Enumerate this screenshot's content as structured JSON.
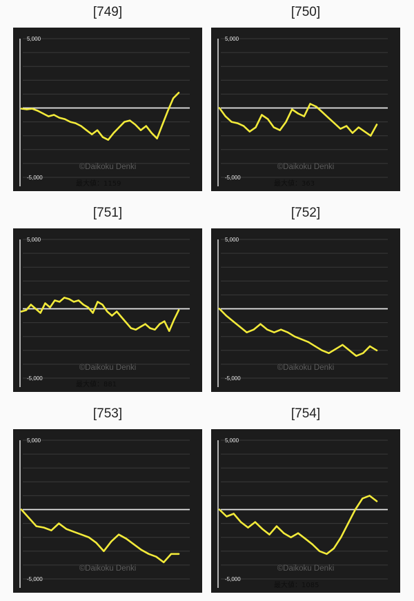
{
  "chart_data": [
    {
      "type": "line",
      "title": "[749]",
      "ylim": [
        -5000,
        5000
      ],
      "yticks": [
        "5,000",
        "-5,000"
      ],
      "watermark": "©Daikoku Denki",
      "max_label": "最大値：1159",
      "line_color": "#f2ea3a",
      "y": [
        -50,
        -100,
        -50,
        -200,
        -400,
        -600,
        -500,
        -700,
        -800,
        -1000,
        -1100,
        -1300,
        -1600,
        -1900,
        -1600,
        -2100,
        -2300,
        -1800,
        -1400,
        -1000,
        -900,
        -1200,
        -1600,
        -1300,
        -1800,
        -2200,
        -1200,
        -200,
        700,
        1100
      ]
    },
    {
      "type": "line",
      "title": "[750]",
      "ylim": [
        -5000,
        5000
      ],
      "yticks": [
        "5,000",
        "-5,000"
      ],
      "watermark": "©Daikoku Denki",
      "max_label": "最大値：363",
      "line_color": "#f2ea3a",
      "y": [
        0,
        -600,
        -1000,
        -1100,
        -1300,
        -1700,
        -1400,
        -500,
        -800,
        -1400,
        -1600,
        -1000,
        -100,
        -400,
        -600,
        300,
        100,
        -300,
        -700,
        -1100,
        -1500,
        -1300,
        -1800,
        -1400,
        -1700,
        -2000,
        -1200
      ]
    },
    {
      "type": "line",
      "title": "[751]",
      "ylim": [
        -5000,
        5000
      ],
      "yticks": [
        "5,000",
        "-5,000"
      ],
      "watermark": "©Daikoku Denki",
      "max_label": "最大値：881",
      "line_color": "#f2ea3a",
      "y": [
        -200,
        -100,
        300,
        0,
        -300,
        400,
        100,
        600,
        500,
        800,
        700,
        500,
        600,
        300,
        100,
        -300,
        500,
        300,
        -200,
        -500,
        -200,
        -600,
        -1000,
        -1400,
        -1500,
        -1300,
        -1100,
        -1400,
        -1500,
        -1100,
        -900,
        -1600,
        -800,
        -100
      ]
    },
    {
      "type": "line",
      "title": "[752]",
      "ylim": [
        -5000,
        5000
      ],
      "yticks": [
        "5,000",
        "-5,000"
      ],
      "watermark": "©Daikoku Denki",
      "max_label": "",
      "line_color": "#f2ea3a",
      "y": [
        0,
        -500,
        -900,
        -1300,
        -1700,
        -1500,
        -1100,
        -1500,
        -1700,
        -1500,
        -1700,
        -2000,
        -2200,
        -2400,
        -2700,
        -3000,
        -3200,
        -2900,
        -2600,
        -3000,
        -3400,
        -3200,
        -2700,
        -3000
      ]
    },
    {
      "type": "line",
      "title": "[753]",
      "ylim": [
        -5000,
        5000
      ],
      "yticks": [
        "5,000",
        "-5,000"
      ],
      "watermark": "©Daikoku Denki",
      "max_label": "",
      "line_color": "#f2ea3a",
      "y": [
        0,
        -600,
        -1200,
        -1300,
        -1500,
        -1000,
        -1400,
        -1600,
        -1800,
        -2000,
        -2400,
        -3000,
        -2300,
        -1800,
        -2100,
        -2500,
        -2900,
        -3200,
        -3400,
        -3800,
        -3200,
        -3200
      ]
    },
    {
      "type": "line",
      "title": "[754]",
      "ylim": [
        -5000,
        5000
      ],
      "yticks": [
        "5,000",
        "-5,000"
      ],
      "watermark": "©Daikoku Denki",
      "max_label": "最大値：1085",
      "line_color": "#f2ea3a",
      "y": [
        0,
        -500,
        -300,
        -900,
        -1300,
        -900,
        -1400,
        -1800,
        -1200,
        -1700,
        -2000,
        -1700,
        -2100,
        -2500,
        -3000,
        -3200,
        -2800,
        -2000,
        -1000,
        0,
        800,
        1000,
        600
      ]
    }
  ]
}
